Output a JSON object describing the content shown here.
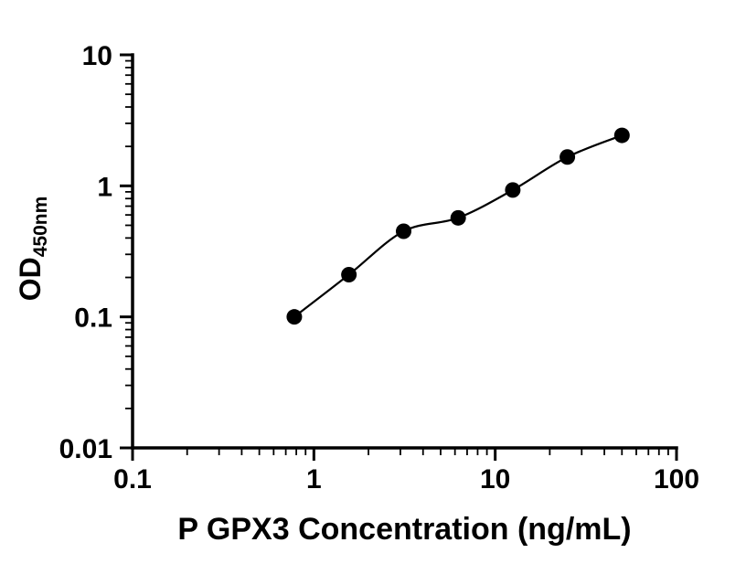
{
  "chart_data": {
    "type": "scatter",
    "title": "",
    "xlabel": "P GPX3 Concentration (ng/mL)",
    "ylabel_main": "OD",
    "ylabel_sub": "450nm",
    "xscale": "log",
    "yscale": "log",
    "xlim": [
      0.1,
      100
    ],
    "ylim": [
      0.01,
      10
    ],
    "x_ticks": [
      0.1,
      1,
      10,
      100
    ],
    "x_tick_labels": [
      "0.1",
      "1",
      "10",
      "100"
    ],
    "y_ticks": [
      0.01,
      0.1,
      1,
      10
    ],
    "y_tick_labels": [
      "0.01",
      "0.1",
      "1",
      "10"
    ],
    "x": [
      0.78,
      1.56,
      3.125,
      6.25,
      12.5,
      25,
      50
    ],
    "y": [
      0.1,
      0.21,
      0.45,
      0.57,
      0.93,
      1.66,
      2.43
    ],
    "grid": false,
    "legend": "none",
    "marker_color": "#000000",
    "line_color": "#000000",
    "axis_color": "#000000",
    "trend_line": true
  }
}
